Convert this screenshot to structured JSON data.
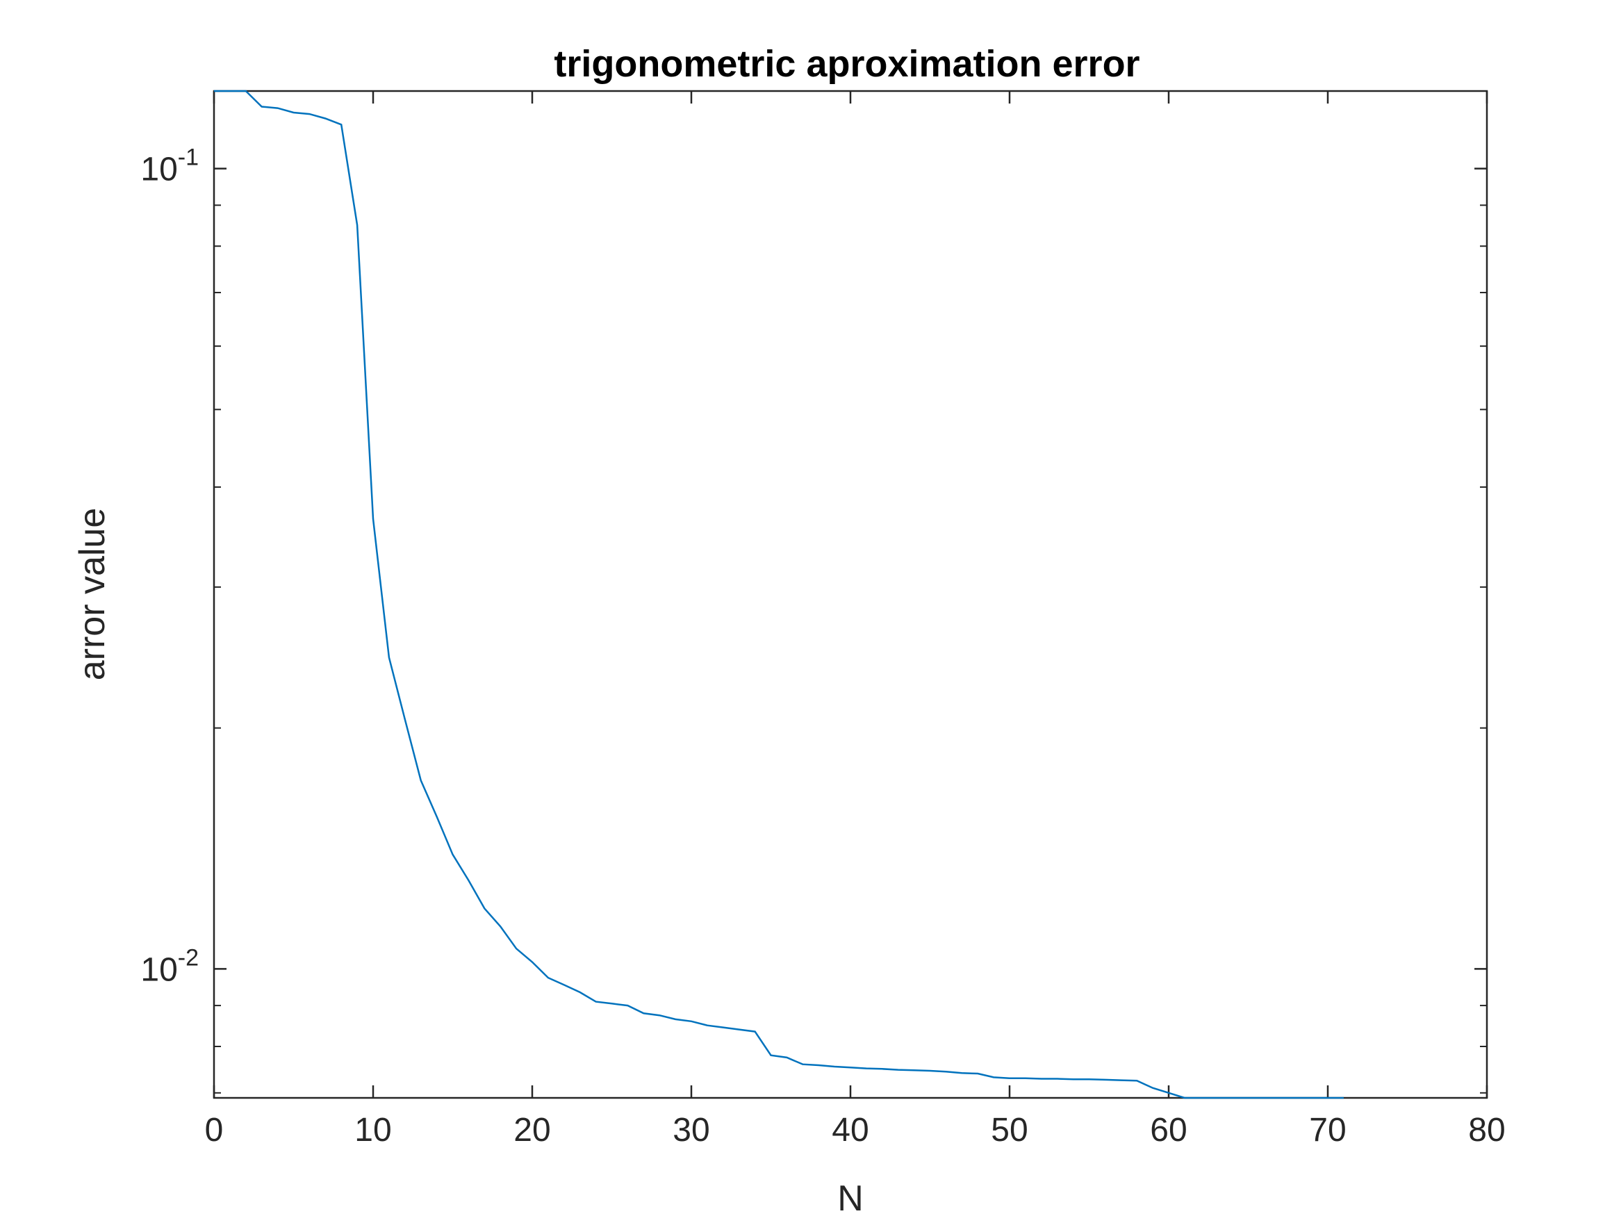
{
  "chart_data": {
    "type": "line",
    "title": "trigonometric aproximation error",
    "xlabel": "N",
    "ylabel": "arror value",
    "xlim": [
      0,
      80
    ],
    "ylim": [
      0.0069,
      0.125
    ],
    "yscale": "log",
    "grid": false,
    "x_ticks": [
      0,
      10,
      20,
      30,
      40,
      50,
      60,
      70,
      80
    ],
    "x_tick_labels": [
      "0",
      "10",
      "20",
      "30",
      "40",
      "50",
      "60",
      "70",
      "80"
    ],
    "y_ticks": [
      0.1,
      0.01
    ],
    "y_tick_labels": [
      {
        "base": "10",
        "exp": "-1"
      },
      {
        "base": "10",
        "exp": "-2"
      }
    ],
    "series_color": "#0072BD",
    "series": [
      {
        "x": [
          0,
          1,
          2,
          3,
          4,
          5,
          6,
          7,
          8,
          9,
          10,
          11,
          12,
          13,
          14,
          15,
          16,
          17,
          18,
          19,
          20,
          21,
          22,
          23,
          24,
          25,
          26,
          27,
          28,
          29,
          30,
          31,
          32,
          33,
          34,
          35,
          36,
          37,
          38,
          39,
          40,
          41,
          42,
          43,
          44,
          45,
          46,
          47,
          48,
          49,
          50,
          51,
          52,
          53,
          54,
          55,
          56,
          57,
          58,
          59,
          60,
          61,
          62,
          63,
          64,
          65,
          66,
          67,
          68,
          69,
          70,
          71
        ],
        "values": [
          0.125,
          0.125,
          0.125,
          0.1195,
          0.119,
          0.1175,
          0.117,
          0.1155,
          0.1135,
          0.085,
          0.0365,
          0.0245,
          0.0205,
          0.0172,
          0.0155,
          0.0139,
          0.0129,
          0.0119,
          0.0113,
          0.0106,
          0.0102,
          0.00975,
          0.00955,
          0.00935,
          0.0091,
          0.00905,
          0.009,
          0.0088,
          0.00875,
          0.00865,
          0.0086,
          0.0085,
          0.00845,
          0.0084,
          0.00835,
          0.0078,
          0.00775,
          0.0076,
          0.00758,
          0.00755,
          0.00753,
          0.00751,
          0.0075,
          0.00748,
          0.00747,
          0.00746,
          0.00744,
          0.00741,
          0.0074,
          0.00732,
          0.0073,
          0.0073,
          0.00729,
          0.00729,
          0.00728,
          0.00728,
          0.00727,
          0.00726,
          0.00725,
          0.0071,
          0.007,
          0.0069,
          0.0069,
          0.00687,
          0.00686,
          0.00684,
          0.00683,
          0.00681,
          0.0068,
          0.0067,
          0.0067,
          0.0067
        ]
      }
    ]
  }
}
